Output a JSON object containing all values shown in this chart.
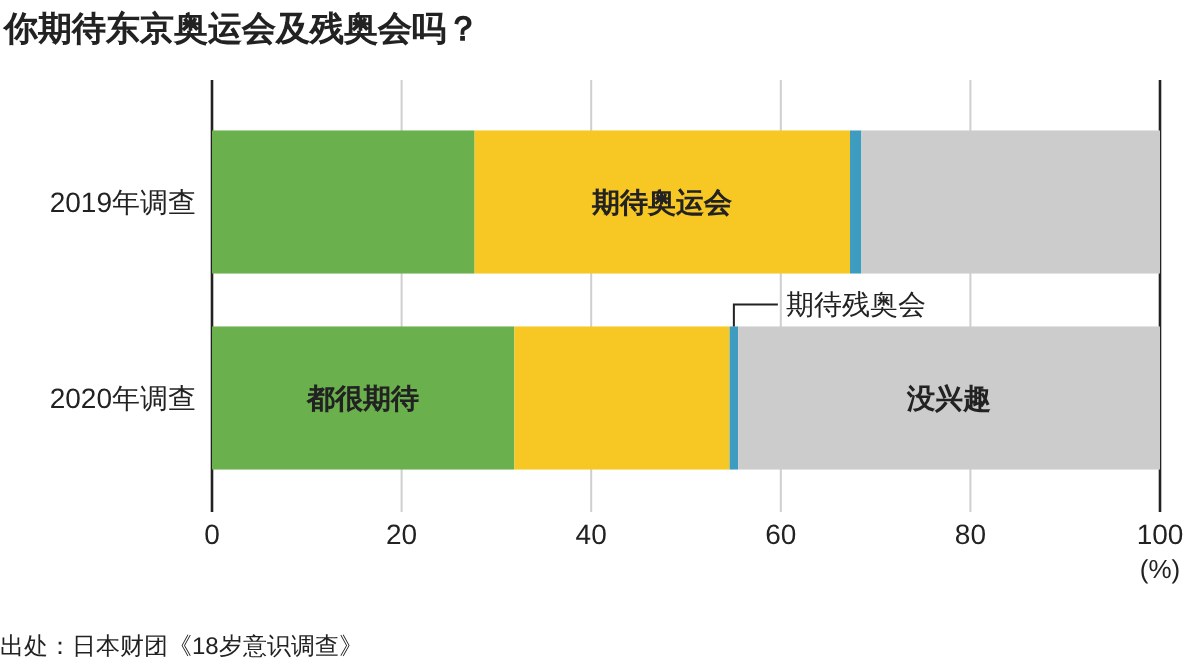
{
  "chart_data": {
    "type": "bar",
    "orientation": "horizontal",
    "stacked": true,
    "title": "你期待东京奥运会及残奥会吗？",
    "xlabel": "(%)",
    "categories": [
      "2019年调查",
      "2020年调查"
    ],
    "series": [
      {
        "name": "都很期待",
        "color": "#6ab04c",
        "values": [
          27.7,
          31.9
        ]
      },
      {
        "name": "期待奥运会",
        "color": "#f7c824",
        "values": [
          39.6,
          22.7
        ]
      },
      {
        "name": "期待残奥会",
        "color": "#3e9cc0",
        "values": [
          1.2,
          0.9
        ]
      },
      {
        "name": "没兴趣",
        "color": "#cccccc",
        "values": [
          31.5,
          44.5
        ]
      }
    ],
    "xlim": [
      0,
      100
    ],
    "xticks": [
      0,
      20,
      40,
      60,
      80,
      100
    ],
    "grid": "x",
    "legend": false,
    "annotations": [
      "出处：日本财团《18岁意识调查》"
    ]
  }
}
